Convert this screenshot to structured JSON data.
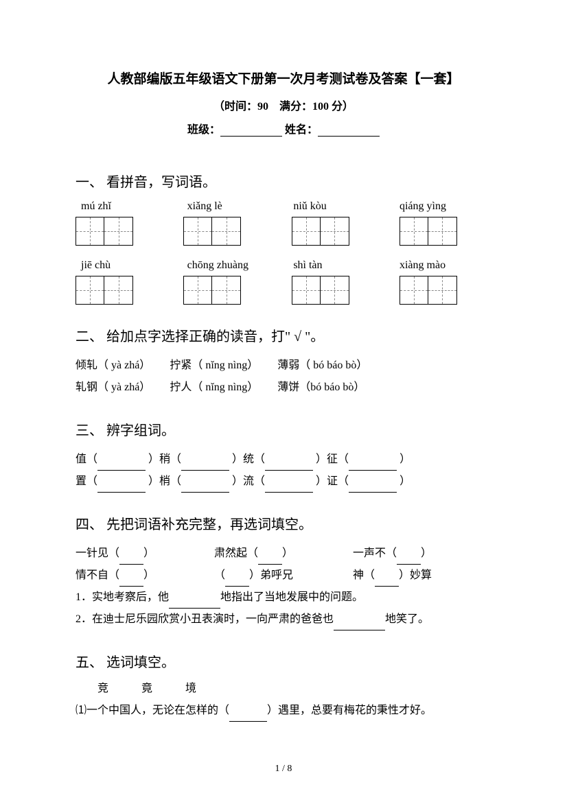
{
  "header": {
    "title": "人教部编版五年级语文下册第一次月考测试卷及答案【一套】",
    "subtitle": "（时间：90　满分：100 分）",
    "class_label": "班级：",
    "name_label": "姓名："
  },
  "q1": {
    "heading": "一、 看拼音，写词语。",
    "pinyin_row1": [
      "mú zhǐ",
      "xiǎng lè",
      "niǔ kòu",
      "qiáng yìng"
    ],
    "pinyin_row2": [
      "jiē chù",
      "chōng zhuàng",
      "shì tàn",
      "xiàng mào"
    ]
  },
  "q2": {
    "heading": "二、 给加点字选择正确的读音，打\" √ \"。",
    "line1_a": "倾轧（ yà  zhá）",
    "line1_b": "拧紧（ nǐng  nìng）",
    "line1_c": "薄弱（ bó  báo  bò）",
    "line2_a": "轧钢（ yà  zhá）",
    "line2_b": "拧人（ nǐng  nìng）",
    "line2_c": "薄饼（bó  báo  bò）"
  },
  "q3": {
    "heading": "三、 辨字组词。",
    "r1c1": "值（",
    "r1c2": "）稍（",
    "r1c3": "）统（",
    "r1c4": "）征（",
    "r1end": "）",
    "r2c1": "置（",
    "r2c2": "）梢（",
    "r2c3": "）流（",
    "r2c4": "）证（",
    "r2end": "）"
  },
  "q4": {
    "heading": "四、 先把词语补充完整，再选词填空。",
    "idiom_r1_a": "一针见（",
    "idiom_r1_b": "肃然起（",
    "idiom_r1_c": "一声不（",
    "idiom_r2_a": "情不自（",
    "idiom_r2_b_pre": "（",
    "idiom_r2_b_post": "）弟呼兄",
    "idiom_r2_c_pre": "神（",
    "idiom_r2_c_post": "）妙算",
    "close": "）",
    "sent1_a": "1．实地考察后，他",
    "sent1_b": "地指出了当地发展中的问题。",
    "sent2_a": "2．在迪士尼乐园欣赏小丑表演时，一向严肃的爸爸也",
    "sent2_b": "地笑了。"
  },
  "q5": {
    "heading": "五、 选词填空。",
    "options": "　　竞　　　竟　　　境",
    "sent1_a": "⑴一个中国人，无论在怎样的（",
    "sent1_b": "）遇里，总要有梅花的秉性才好。"
  },
  "footer": {
    "page": "1 / 8"
  }
}
